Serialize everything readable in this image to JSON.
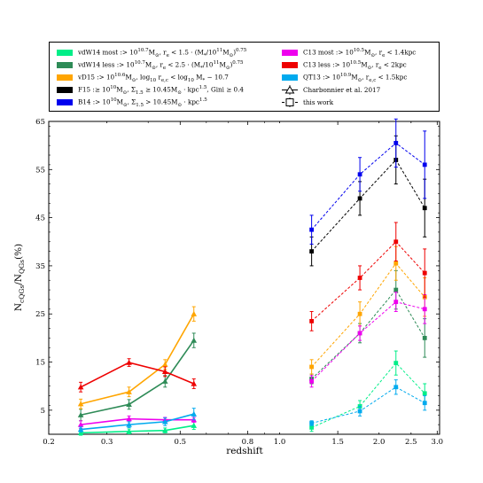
{
  "chart_data": {
    "type": "scatter",
    "xlabel": "redshift",
    "ylabel": "N_cQGs/N_QGs(%)",
    "xscale": "log",
    "xlim": [
      0.2,
      3.05
    ],
    "ylim": [
      0,
      65
    ],
    "xticks": [
      {
        "value": 0.2,
        "label": "0.2",
        "major": true
      },
      {
        "value": 0.3,
        "label": "0.3",
        "major": false
      },
      {
        "value": 0.5,
        "label": "0.5",
        "major": true
      },
      {
        "value": 0.8,
        "label": "0.8",
        "major": true
      },
      {
        "value": 1.0,
        "label": "1.0",
        "major": false
      },
      {
        "value": 1.5,
        "label": "1.5",
        "major": true
      },
      {
        "value": 2.0,
        "label": "2.0",
        "major": false
      },
      {
        "value": 2.5,
        "label": "2.5",
        "major": false
      },
      {
        "value": 3.0,
        "label": "3.0",
        "major": true
      }
    ],
    "yticks": [
      5,
      15,
      25,
      35,
      45,
      55,
      65
    ],
    "grid": false,
    "legend_position": "top",
    "legend": {
      "left_column": [
        {
          "id": "vdW14most",
          "label": "vdW14 most :> 10^{10.7}M_⊙, r_e < 1.5 · (M_*/10^{11}M_⊙)^{0.75}"
        },
        {
          "id": "vdW14less",
          "label": "vdW14 less :> 10^{10.7}M_⊙, r_e < 2.5 · (M_*/10^{11}M_⊙)^{0.75}"
        },
        {
          "id": "vD15",
          "label": "vD15 :> 10^{10.6}M_⊙, log_{10} r_{e,c} < log_{10} M_* − 10.7"
        },
        {
          "id": "F15",
          "label": "F15 :≥ 10^{10}M_⊙, Σ_{1.5} ≥ 10.45M_⊙ · kpc^{1.5}, Gini ≥ 0.4"
        },
        {
          "id": "B14",
          "label": "B14 :> 10^{10}M_⊙, Σ_{1.5} > 10.45M_⊙ · kpc^{1.5}"
        }
      ],
      "right_column": [
        {
          "id": "C13most",
          "label": "C13 most :> 10^{10.5}M_⊙, r_e < 1.4kpc"
        },
        {
          "id": "C13less",
          "label": "C13 less :> 10^{10.5}M_⊙, r_e < 2kpc"
        },
        {
          "id": "QT13",
          "label": "QT13 :> 10^{10.9}M_⊙, r_{e,c} < 1.5kpc"
        },
        {
          "id": "charbonnier",
          "label": "Charbonnier et al. 2017",
          "marker": "triangle"
        },
        {
          "id": "thiswork",
          "label": "this work",
          "marker": "square"
        }
      ]
    },
    "series": [
      {
        "name": "vdW14 most",
        "color": "#00ee88",
        "charbonnier": {
          "x": [
            0.25,
            0.35,
            0.45,
            0.55
          ],
          "y": [
            0.3,
            0.6,
            0.8,
            1.8
          ],
          "err": [
            0.5,
            0.5,
            0.5,
            0.8
          ]
        },
        "thiswork": {
          "x": [
            1.25,
            1.75,
            2.25,
            2.75
          ],
          "y": [
            1.4,
            5.8,
            14.8,
            8.5
          ],
          "err": [
            0.8,
            1.2,
            2.5,
            2.0
          ]
        }
      },
      {
        "name": "vdW14 less",
        "color": "#2e8b57",
        "charbonnier": {
          "x": [
            0.25,
            0.35,
            0.45,
            0.55
          ],
          "y": [
            4.0,
            6.2,
            11.0,
            19.5
          ],
          "err": [
            1.2,
            1.0,
            1.2,
            1.5
          ]
        },
        "thiswork": {
          "x": [
            1.25,
            1.75,
            2.25,
            2.75
          ],
          "y": [
            11.5,
            21.0,
            30.0,
            20.0
          ],
          "err": [
            1.0,
            2.0,
            4.0,
            4.0
          ]
        }
      },
      {
        "name": "vD15",
        "color": "#ffa500",
        "charbonnier": {
          "x": [
            0.25,
            0.35,
            0.45,
            0.55
          ],
          "y": [
            6.3,
            8.8,
            14.5,
            25.0
          ],
          "err": [
            1.0,
            1.0,
            1.0,
            1.5
          ]
        },
        "thiswork": {
          "x": [
            1.25,
            1.75,
            2.25,
            2.75
          ],
          "y": [
            14.0,
            25.0,
            35.5,
            28.5
          ],
          "err": [
            1.5,
            2.5,
            3.5,
            4.0
          ]
        }
      },
      {
        "name": "F15",
        "color": "#000000",
        "thiswork": {
          "x": [
            1.25,
            1.75,
            2.25,
            2.75
          ],
          "y": [
            38.0,
            49.0,
            57.0,
            47.0
          ],
          "err": [
            3.0,
            3.5,
            5.0,
            6.0
          ]
        }
      },
      {
        "name": "B14",
        "color": "#0000ee",
        "thiswork": {
          "x": [
            1.25,
            1.75,
            2.25,
            2.75
          ],
          "y": [
            42.5,
            54.0,
            60.5,
            56.0
          ],
          "err": [
            3.0,
            3.5,
            5.0,
            7.0
          ]
        }
      },
      {
        "name": "C13 most",
        "color": "#ee00ee",
        "charbonnier": {
          "x": [
            0.25,
            0.35,
            0.45,
            0.55
          ],
          "y": [
            2.0,
            3.2,
            3.0,
            3.0
          ],
          "err": [
            0.8,
            0.6,
            0.5,
            0.5
          ]
        },
        "thiswork": {
          "x": [
            1.25,
            1.75,
            2.25,
            2.75
          ],
          "y": [
            11.0,
            21.0,
            27.5,
            26.0
          ],
          "err": [
            1.2,
            1.5,
            2.0,
            3.0
          ]
        }
      },
      {
        "name": "C13 less",
        "color": "#ee0000",
        "charbonnier": {
          "x": [
            0.25,
            0.35,
            0.45,
            0.55
          ],
          "y": [
            9.8,
            14.9,
            13.0,
            10.5
          ],
          "err": [
            1.0,
            0.8,
            1.0,
            1.0
          ]
        },
        "thiswork": {
          "x": [
            1.25,
            1.75,
            2.25,
            2.75
          ],
          "y": [
            23.5,
            32.5,
            40.0,
            33.5
          ],
          "err": [
            2.0,
            2.5,
            4.0,
            5.0
          ]
        }
      },
      {
        "name": "QT13",
        "color": "#00aaee",
        "charbonnier": {
          "x": [
            0.25,
            0.35,
            0.45,
            0.55
          ],
          "y": [
            1.0,
            2.0,
            2.6,
            4.2
          ],
          "err": [
            0.5,
            0.6,
            0.8,
            1.2
          ]
        },
        "thiswork": {
          "x": [
            1.25,
            1.75,
            2.25,
            2.75
          ],
          "y": [
            2.3,
            4.8,
            9.8,
            6.5
          ],
          "err": [
            0.5,
            1.0,
            1.5,
            1.5
          ]
        }
      }
    ]
  }
}
